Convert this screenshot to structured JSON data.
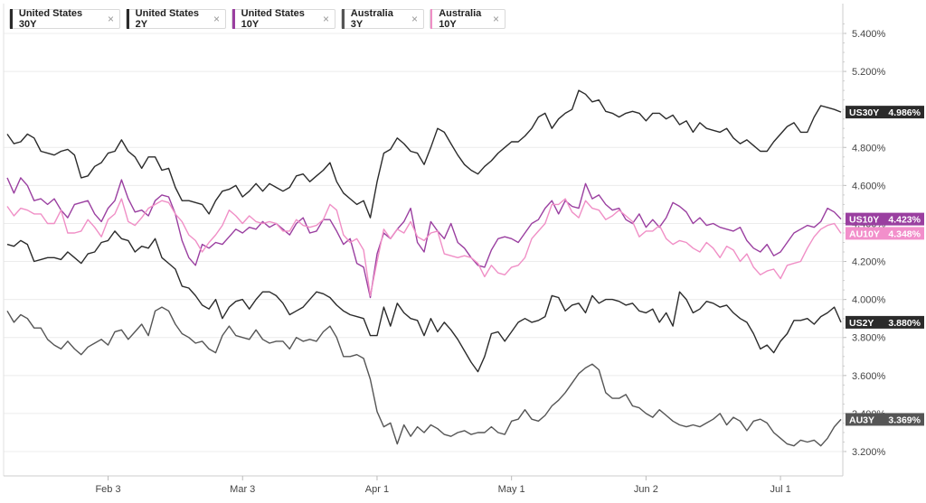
{
  "chart_data": {
    "type": "line",
    "title": "",
    "xlabel": "",
    "ylabel": "",
    "ylim": [
      3.1,
      5.55
    ],
    "y_ticks": [
      "5.400%",
      "5.200%",
      "4.800%",
      "4.600%",
      "4.400%",
      "4.200%",
      "4.000%",
      "3.800%",
      "3.600%",
      "3.400%",
      "3.200%"
    ],
    "y_tick_values": [
      5.4,
      5.2,
      4.8,
      4.6,
      4.4,
      4.2,
      4.0,
      3.8,
      3.6,
      3.4,
      3.2
    ],
    "x_ticks": [
      "Feb 3",
      "Mar 3",
      "Apr 1",
      "May 1",
      "Jun 2",
      "Jul 1"
    ],
    "x_tick_positions": [
      15,
      35,
      55,
      75,
      95,
      115
    ],
    "grid": "horizontal",
    "legend_position": "top-left",
    "series": [
      {
        "name": "United States 30Y",
        "tag": "US30Y",
        "last_label": "4.986%",
        "last": 4.986,
        "color": "#2b2b2b",
        "tag_bg": "#2b2b2b",
        "values": [
          4.87,
          4.82,
          4.83,
          4.87,
          4.85,
          4.78,
          4.77,
          4.76,
          4.78,
          4.79,
          4.76,
          4.64,
          4.65,
          4.7,
          4.72,
          4.77,
          4.78,
          4.84,
          4.78,
          4.75,
          4.69,
          4.75,
          4.75,
          4.68,
          4.69,
          4.59,
          4.52,
          4.52,
          4.51,
          4.5,
          4.45,
          4.52,
          4.57,
          4.58,
          4.6,
          4.54,
          4.57,
          4.61,
          4.57,
          4.61,
          4.59,
          4.57,
          4.59,
          4.65,
          4.66,
          4.62,
          4.65,
          4.68,
          4.72,
          4.62,
          4.56,
          4.53,
          4.5,
          4.52,
          4.43,
          4.62,
          4.77,
          4.79,
          4.85,
          4.82,
          4.78,
          4.77,
          4.71,
          4.8,
          4.9,
          4.88,
          4.82,
          4.76,
          4.71,
          4.68,
          4.66,
          4.7,
          4.73,
          4.77,
          4.8,
          4.83,
          4.83,
          4.86,
          4.9,
          4.96,
          4.98,
          4.9,
          4.95,
          4.98,
          5.0,
          5.1,
          5.08,
          5.04,
          5.05,
          4.99,
          4.98,
          4.96,
          4.98,
          4.99,
          4.98,
          4.94,
          4.98,
          4.98,
          4.95,
          4.97,
          4.92,
          4.94,
          4.88,
          4.93,
          4.9,
          4.89,
          4.88,
          4.9,
          4.85,
          4.82,
          4.84,
          4.81,
          4.78,
          4.78,
          4.83,
          4.87,
          4.91,
          4.93,
          4.88,
          4.88,
          4.96,
          5.02,
          5.01,
          5.0,
          4.986
        ]
      },
      {
        "name": "United States 2Y",
        "tag": "US2Y",
        "last_label": "3.880%",
        "last": 3.88,
        "color": "#2b2b2b",
        "tag_bg": "#2b2b2b",
        "values": [
          4.29,
          4.28,
          4.31,
          4.29,
          4.2,
          4.21,
          4.22,
          4.22,
          4.21,
          4.25,
          4.22,
          4.19,
          4.24,
          4.25,
          4.3,
          4.31,
          4.36,
          4.32,
          4.31,
          4.25,
          4.28,
          4.27,
          4.32,
          4.22,
          4.19,
          4.16,
          4.07,
          4.06,
          4.02,
          3.97,
          3.95,
          4.0,
          3.9,
          3.96,
          3.99,
          4.0,
          3.95,
          4.0,
          4.04,
          4.04,
          4.02,
          3.98,
          3.92,
          3.94,
          3.96,
          4.0,
          4.04,
          4.03,
          4.01,
          3.97,
          3.94,
          3.92,
          3.91,
          3.9,
          3.81,
          3.81,
          3.96,
          3.86,
          3.98,
          3.93,
          3.9,
          3.89,
          3.81,
          3.9,
          3.83,
          3.88,
          3.84,
          3.79,
          3.73,
          3.67,
          3.62,
          3.7,
          3.82,
          3.83,
          3.78,
          3.83,
          3.88,
          3.9,
          3.88,
          3.89,
          3.91,
          4.02,
          4.01,
          3.94,
          3.97,
          3.98,
          3.93,
          4.02,
          3.98,
          4.0,
          4.0,
          3.99,
          3.97,
          3.98,
          3.94,
          3.93,
          3.95,
          3.88,
          3.93,
          3.86,
          4.04,
          4.0,
          3.93,
          3.95,
          3.99,
          3.98,
          3.96,
          3.97,
          3.93,
          3.9,
          3.88,
          3.82,
          3.74,
          3.76,
          3.72,
          3.78,
          3.82,
          3.89,
          3.89,
          3.9,
          3.87,
          3.91,
          3.93,
          3.96,
          3.88
        ]
      },
      {
        "name": "United States 10Y",
        "tag": "US10Y",
        "last_label": "4.423%",
        "last": 4.423,
        "color": "#9a3fa0",
        "tag_bg": "#9a3fa0",
        "values": [
          4.64,
          4.56,
          4.64,
          4.6,
          4.52,
          4.53,
          4.5,
          4.53,
          4.47,
          4.43,
          4.5,
          4.51,
          4.52,
          4.45,
          4.41,
          4.48,
          4.52,
          4.63,
          4.53,
          4.46,
          4.47,
          4.44,
          4.52,
          4.55,
          4.54,
          4.45,
          4.31,
          4.22,
          4.18,
          4.29,
          4.27,
          4.3,
          4.29,
          4.33,
          4.37,
          4.35,
          4.38,
          4.37,
          4.41,
          4.38,
          4.4,
          4.37,
          4.34,
          4.4,
          4.43,
          4.35,
          4.36,
          4.42,
          4.42,
          4.36,
          4.29,
          4.32,
          4.19,
          4.17,
          4.01,
          4.24,
          4.35,
          4.32,
          4.37,
          4.41,
          4.48,
          4.3,
          4.25,
          4.41,
          4.36,
          4.32,
          4.4,
          4.3,
          4.27,
          4.22,
          4.18,
          4.17,
          4.26,
          4.32,
          4.33,
          4.32,
          4.3,
          4.35,
          4.4,
          4.42,
          4.48,
          4.52,
          4.45,
          4.52,
          4.49,
          4.48,
          4.61,
          4.53,
          4.55,
          4.5,
          4.47,
          4.48,
          4.42,
          4.4,
          4.45,
          4.38,
          4.42,
          4.38,
          4.43,
          4.51,
          4.49,
          4.46,
          4.4,
          4.43,
          4.39,
          4.4,
          4.38,
          4.37,
          4.36,
          4.38,
          4.31,
          4.27,
          4.25,
          4.29,
          4.23,
          4.25,
          4.3,
          4.35,
          4.37,
          4.39,
          4.38,
          4.41,
          4.48,
          4.46,
          4.423
        ]
      },
      {
        "name": "Australia 3Y",
        "tag": "AU3Y",
        "last_label": "3.369%",
        "last": 3.369,
        "color": "#555555",
        "tag_bg": "#555555",
        "values": [
          3.94,
          3.88,
          3.92,
          3.9,
          3.85,
          3.85,
          3.79,
          3.76,
          3.74,
          3.78,
          3.74,
          3.71,
          3.75,
          3.77,
          3.79,
          3.76,
          3.83,
          3.84,
          3.79,
          3.83,
          3.87,
          3.81,
          3.94,
          3.96,
          3.94,
          3.87,
          3.82,
          3.8,
          3.77,
          3.78,
          3.74,
          3.72,
          3.81,
          3.86,
          3.81,
          3.8,
          3.79,
          3.84,
          3.79,
          3.77,
          3.78,
          3.78,
          3.74,
          3.8,
          3.78,
          3.79,
          3.78,
          3.83,
          3.86,
          3.8,
          3.7,
          3.7,
          3.71,
          3.69,
          3.58,
          3.41,
          3.33,
          3.35,
          3.24,
          3.34,
          3.28,
          3.33,
          3.3,
          3.34,
          3.32,
          3.29,
          3.28,
          3.3,
          3.31,
          3.29,
          3.3,
          3.3,
          3.33,
          3.3,
          3.29,
          3.36,
          3.37,
          3.42,
          3.37,
          3.36,
          3.39,
          3.44,
          3.47,
          3.51,
          3.56,
          3.61,
          3.64,
          3.66,
          3.63,
          3.51,
          3.48,
          3.48,
          3.5,
          3.44,
          3.43,
          3.4,
          3.38,
          3.42,
          3.39,
          3.36,
          3.34,
          3.33,
          3.34,
          3.33,
          3.35,
          3.37,
          3.4,
          3.34,
          3.38,
          3.36,
          3.31,
          3.36,
          3.37,
          3.35,
          3.3,
          3.27,
          3.24,
          3.23,
          3.26,
          3.25,
          3.26,
          3.23,
          3.27,
          3.33,
          3.369
        ]
      },
      {
        "name": "Australia 10Y",
        "tag": "AU10Y",
        "last_label": "4.348%",
        "last": 4.348,
        "color": "#f08fc6",
        "tag_bg": "#f28fcb",
        "values": [
          4.49,
          4.44,
          4.48,
          4.47,
          4.45,
          4.45,
          4.4,
          4.4,
          4.47,
          4.35,
          4.35,
          4.36,
          4.42,
          4.38,
          4.33,
          4.42,
          4.45,
          4.53,
          4.41,
          4.39,
          4.43,
          4.48,
          4.5,
          4.52,
          4.51,
          4.45,
          4.41,
          4.34,
          4.31,
          4.25,
          4.3,
          4.34,
          4.39,
          4.47,
          4.44,
          4.4,
          4.44,
          4.41,
          4.4,
          4.41,
          4.4,
          4.36,
          4.36,
          4.42,
          4.39,
          4.38,
          4.39,
          4.42,
          4.5,
          4.47,
          4.34,
          4.3,
          4.32,
          4.26,
          4.02,
          4.2,
          4.37,
          4.32,
          4.37,
          4.35,
          4.41,
          4.33,
          4.31,
          4.35,
          4.36,
          4.24,
          4.23,
          4.22,
          4.23,
          4.22,
          4.19,
          4.12,
          4.18,
          4.14,
          4.13,
          4.17,
          4.18,
          4.22,
          4.32,
          4.36,
          4.4,
          4.5,
          4.5,
          4.53,
          4.46,
          4.43,
          4.52,
          4.48,
          4.47,
          4.42,
          4.44,
          4.47,
          4.44,
          4.41,
          4.33,
          4.36,
          4.36,
          4.39,
          4.32,
          4.29,
          4.31,
          4.3,
          4.27,
          4.25,
          4.3,
          4.27,
          4.22,
          4.28,
          4.26,
          4.2,
          4.24,
          4.17,
          4.13,
          4.15,
          4.16,
          4.11,
          4.18,
          4.19,
          4.2,
          4.27,
          4.33,
          4.37,
          4.39,
          4.4,
          4.348
        ]
      }
    ]
  }
}
